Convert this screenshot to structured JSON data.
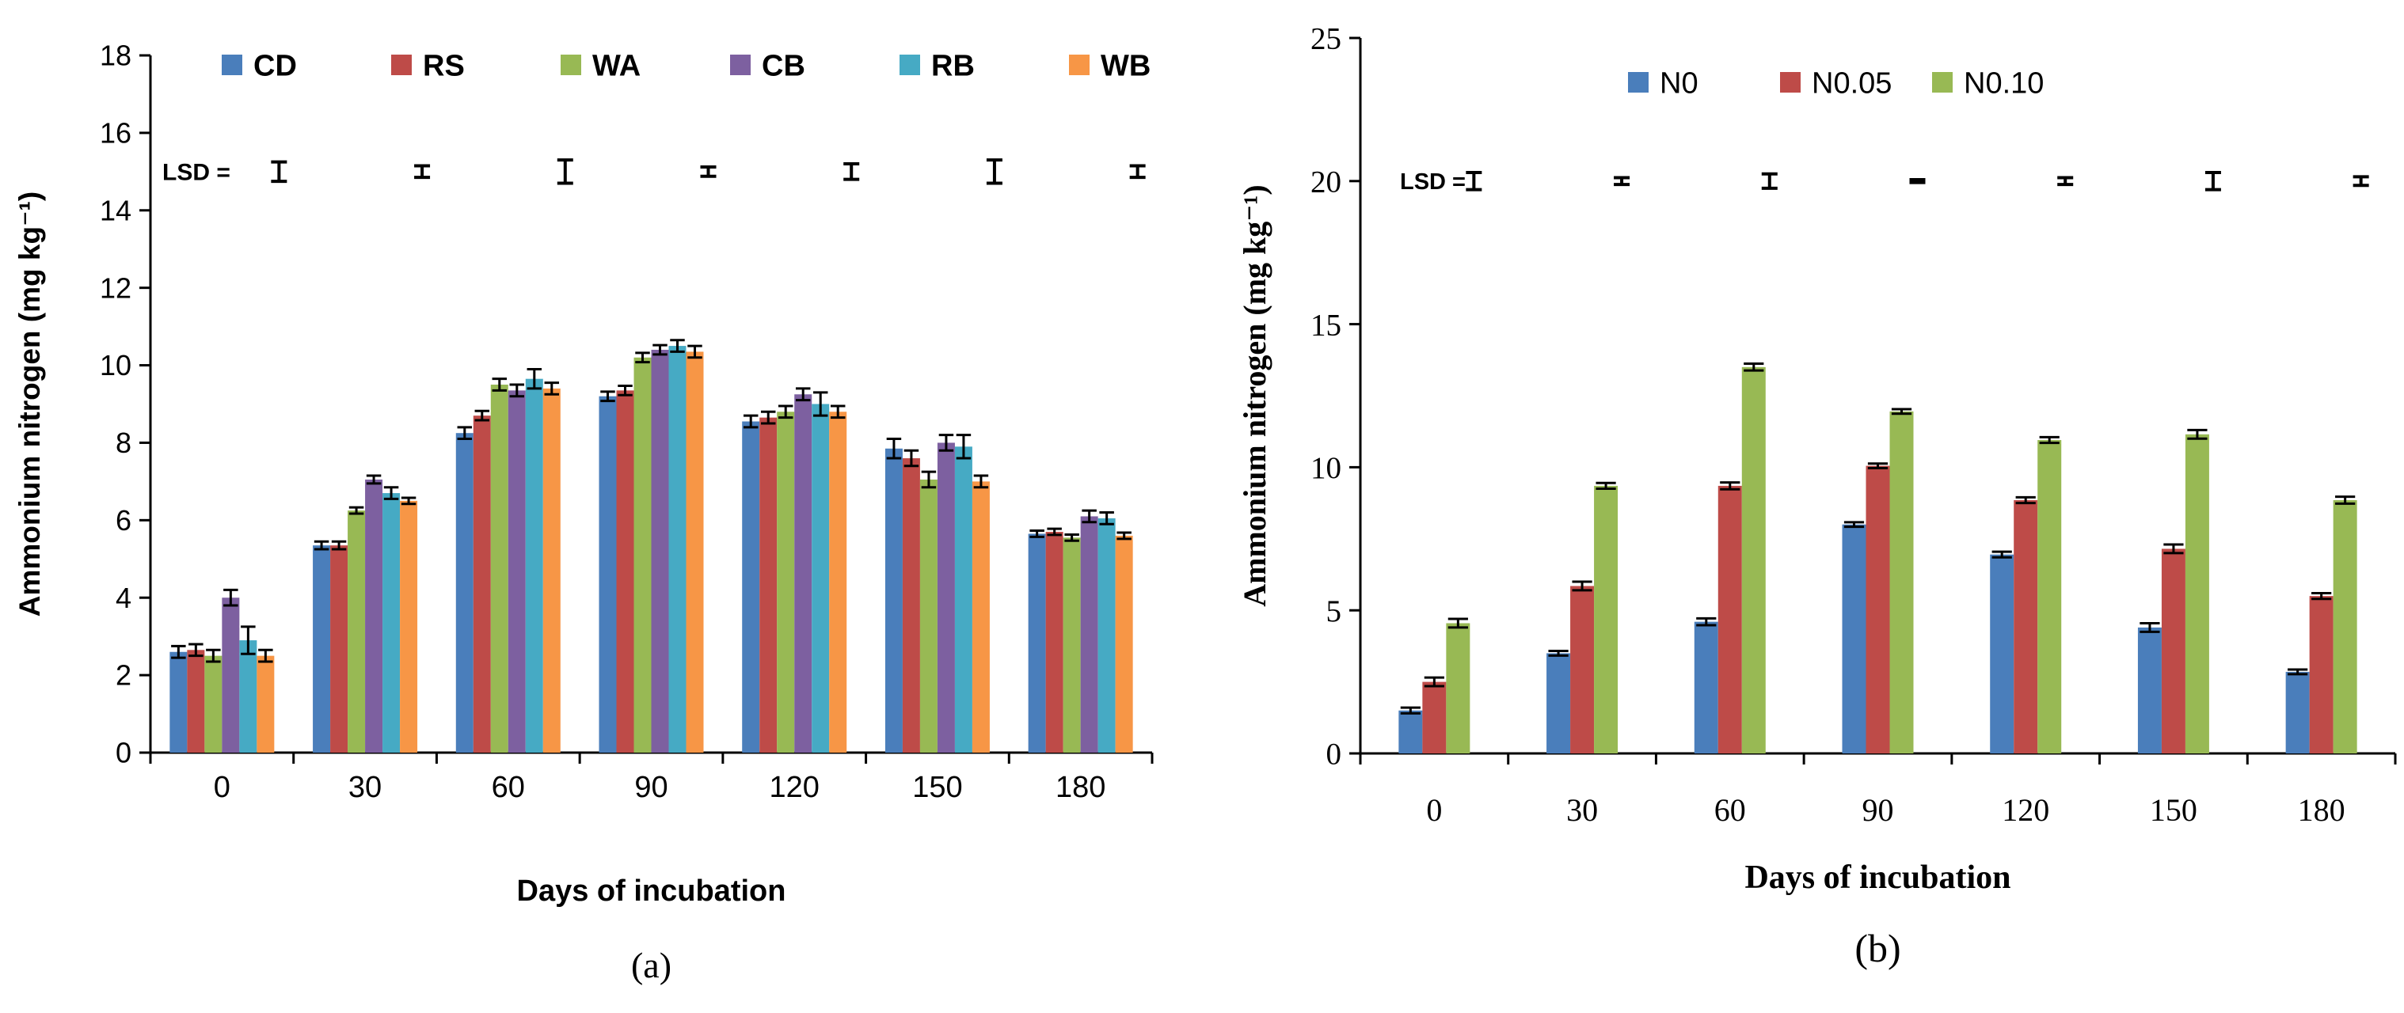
{
  "chart_data": [
    {
      "type": "bar",
      "panel_label": "(a)",
      "title": "",
      "xlabel": "Days of incubation",
      "ylabel": "Ammonium nitrogen (mg kg⁻¹)",
      "ylim": [
        0,
        18
      ],
      "yticks": [
        0,
        2,
        4,
        6,
        8,
        10,
        12,
        14,
        16,
        18
      ],
      "grid": false,
      "legend_position": "top",
      "categories": [
        "0",
        "30",
        "60",
        "90",
        "120",
        "150",
        "180"
      ],
      "series": [
        {
          "name": "CD",
          "color": "#4A7EBB",
          "values": [
            2.6,
            5.35,
            8.25,
            9.2,
            8.55,
            7.85,
            5.65
          ],
          "errors": [
            0.15,
            0.1,
            0.15,
            0.12,
            0.15,
            0.25,
            0.08
          ]
        },
        {
          "name": "RS",
          "color": "#BE4B48",
          "values": [
            2.65,
            5.35,
            8.7,
            9.35,
            8.65,
            7.6,
            5.7
          ],
          "errors": [
            0.15,
            0.1,
            0.12,
            0.12,
            0.15,
            0.2,
            0.08
          ]
        },
        {
          "name": "WA",
          "color": "#98B954",
          "values": [
            2.5,
            6.25,
            9.5,
            10.2,
            8.8,
            7.05,
            5.55
          ],
          "errors": [
            0.15,
            0.08,
            0.15,
            0.12,
            0.15,
            0.2,
            0.08
          ]
        },
        {
          "name": "CB",
          "color": "#7D60A0",
          "values": [
            4.0,
            7.05,
            9.35,
            10.4,
            9.25,
            8.0,
            6.1
          ],
          "errors": [
            0.2,
            0.1,
            0.15,
            0.12,
            0.15,
            0.2,
            0.15
          ]
        },
        {
          "name": "RB",
          "color": "#46AAC4",
          "values": [
            2.9,
            6.7,
            9.65,
            10.5,
            9.0,
            7.9,
            6.05
          ],
          "errors": [
            0.35,
            0.15,
            0.25,
            0.15,
            0.3,
            0.3,
            0.15
          ]
        },
        {
          "name": "WB",
          "color": "#F79646",
          "values": [
            2.5,
            6.5,
            9.4,
            10.35,
            8.8,
            7.0,
            5.6
          ],
          "errors": [
            0.15,
            0.08,
            0.15,
            0.15,
            0.15,
            0.15,
            0.08
          ]
        }
      ],
      "lsd": {
        "label": "LSD =",
        "y": 15,
        "half_widths": [
          0.25,
          0.15,
          0.3,
          0.12,
          0.2,
          0.3,
          0.15
        ]
      }
    },
    {
      "type": "bar",
      "panel_label": "(b)",
      "title": "",
      "xlabel": "Days of incubation",
      "ylabel": "Ammonium nitrogen (mg kg⁻¹)",
      "ylim": [
        0,
        25
      ],
      "yticks": [
        0,
        5,
        10,
        15,
        20,
        25
      ],
      "grid": false,
      "legend_position": "top",
      "categories": [
        "0",
        "30",
        "60",
        "90",
        "120",
        "150",
        "180"
      ],
      "series": [
        {
          "name": "N0",
          "color": "#4A7EBB",
          "values": [
            1.5,
            3.5,
            4.6,
            8.0,
            6.95,
            4.4,
            2.85
          ],
          "errors": [
            0.1,
            0.08,
            0.12,
            0.08,
            0.1,
            0.15,
            0.08
          ]
        },
        {
          "name": "N0.05",
          "color": "#BE4B48",
          "values": [
            2.5,
            5.85,
            9.35,
            10.05,
            8.85,
            7.15,
            5.5
          ],
          "errors": [
            0.15,
            0.15,
            0.12,
            0.08,
            0.1,
            0.15,
            0.1
          ]
        },
        {
          "name": "N0.10",
          "color": "#98B954",
          "values": [
            4.55,
            9.35,
            13.5,
            11.95,
            10.95,
            11.15,
            8.85
          ],
          "errors": [
            0.15,
            0.1,
            0.12,
            0.08,
            0.1,
            0.15,
            0.12
          ]
        }
      ],
      "lsd": {
        "label": "LSD =",
        "y": 20,
        "half_widths": [
          0.3,
          0.12,
          0.25,
          0.05,
          0.12,
          0.3,
          0.15
        ]
      }
    }
  ]
}
